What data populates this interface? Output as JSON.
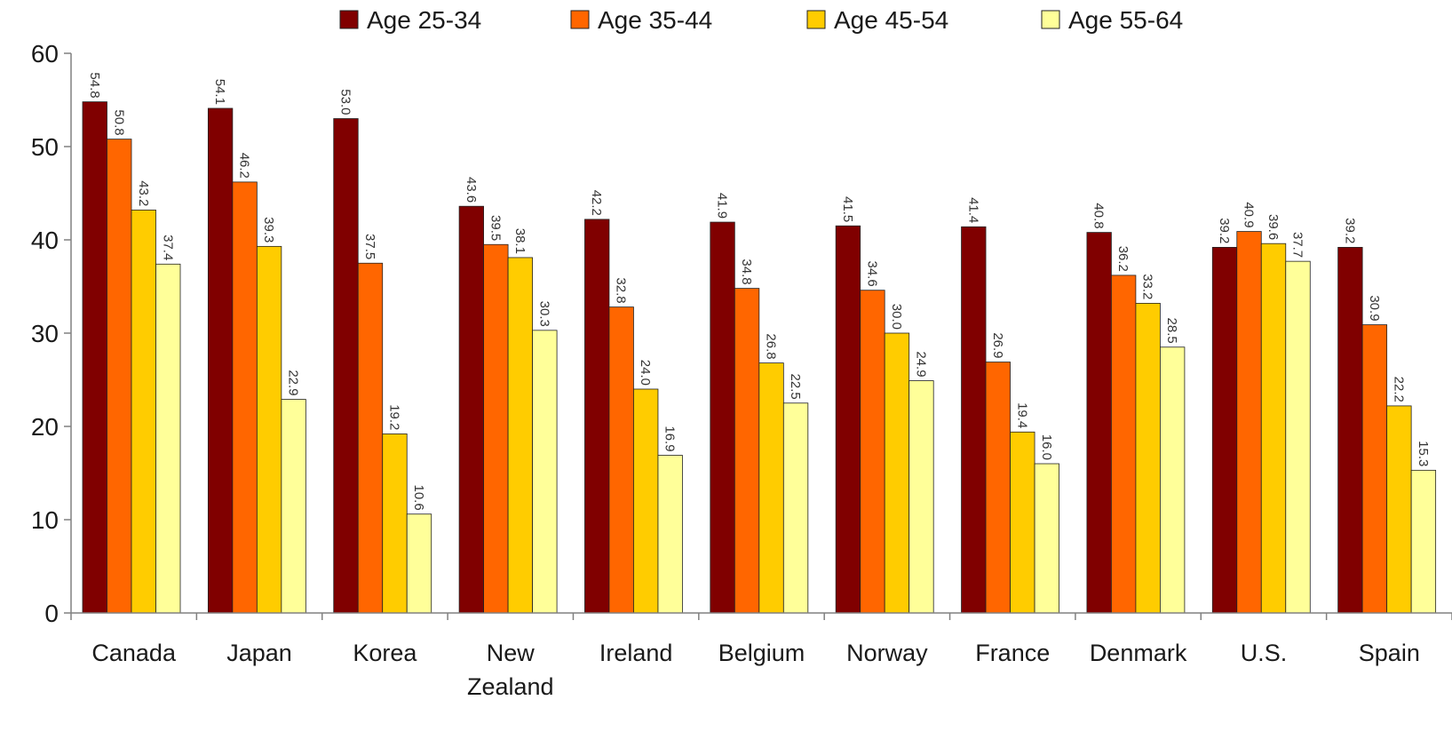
{
  "chart_data": {
    "type": "bar",
    "title": "",
    "xlabel": "",
    "ylabel": "",
    "ylim": [
      0,
      60
    ],
    "yticks": [
      0,
      10,
      20,
      30,
      40,
      50,
      60
    ],
    "grid": false,
    "legend_position": "top",
    "value_labels": "rotated 90° above each bar",
    "categories": [
      [
        "Canada"
      ],
      [
        "Japan"
      ],
      [
        "Korea"
      ],
      [
        "New",
        "Zealand"
      ],
      [
        "Ireland"
      ],
      [
        "Belgium"
      ],
      [
        "Norway"
      ],
      [
        "France"
      ],
      [
        "Denmark"
      ],
      [
        "U.S."
      ],
      [
        "Spain"
      ]
    ],
    "series": [
      {
        "name": "Age 25-34",
        "color": "#800000",
        "values": [
          54.8,
          54.1,
          53.0,
          43.6,
          42.2,
          41.9,
          41.5,
          41.4,
          40.8,
          39.2,
          39.2
        ]
      },
      {
        "name": "Age 35-44",
        "color": "#FF6600",
        "values": [
          50.8,
          46.2,
          37.5,
          39.5,
          32.8,
          34.8,
          34.6,
          26.9,
          36.2,
          40.9,
          30.9
        ]
      },
      {
        "name": "Age 45-54",
        "color": "#FFCC00",
        "values": [
          43.2,
          39.3,
          19.2,
          38.1,
          24.0,
          26.8,
          30.0,
          19.4,
          33.2,
          39.6,
          22.2
        ]
      },
      {
        "name": "Age 55-64",
        "color": "#FFFF99",
        "values": [
          37.4,
          22.9,
          10.6,
          30.3,
          16.9,
          22.5,
          24.9,
          16.0,
          28.5,
          37.7,
          15.3
        ]
      }
    ]
  }
}
